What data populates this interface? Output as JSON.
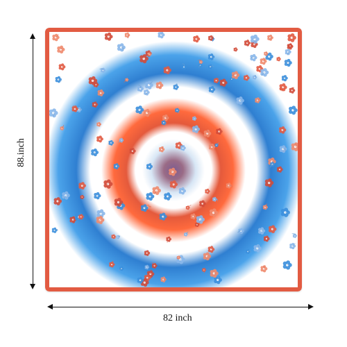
{
  "dimensions": {
    "height_label": "88.inch",
    "width_label": "82 inch"
  },
  "colors": {
    "border": "#e25b42",
    "blue": "#3b8fdd",
    "orange": "#ff6a3d",
    "center_purple": "#7d5c8f"
  }
}
